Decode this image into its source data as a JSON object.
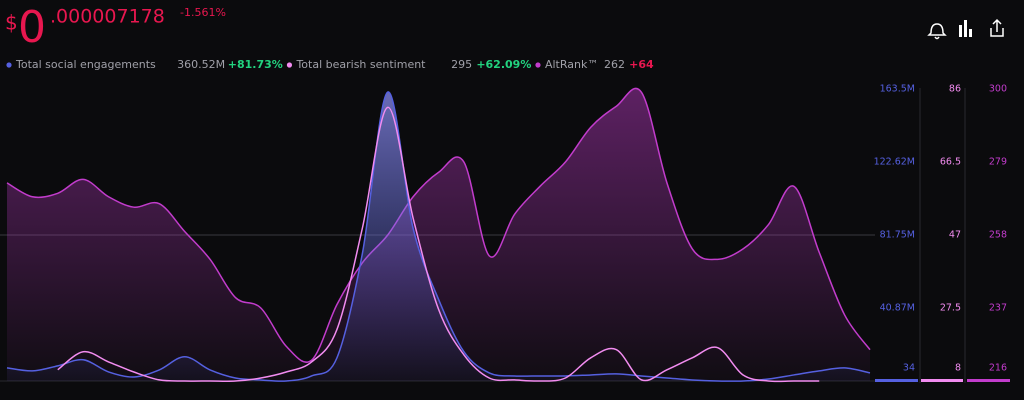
{
  "header": {
    "currency": "$",
    "integer": "0",
    "decimals": ".000007178",
    "change": "-1.561%"
  },
  "chart_data": {
    "type": "line",
    "categories": [
      null,
      null,
      null,
      null,
      null,
      null,
      null,
      null,
      null,
      null,
      null,
      null,
      null,
      null,
      null,
      null,
      null,
      null,
      null,
      null,
      null,
      null,
      null,
      null,
      null,
      null,
      null,
      null,
      null,
      null,
      null,
      null,
      null,
      null,
      null
    ],
    "series": [
      {
        "name": "Total social engagements",
        "current": "360.52M",
        "change": "+81.73%",
        "change_color": "#22d37f",
        "color": "#5560e0",
        "axis": "y",
        "area": true,
        "values": [
          7350000,
          5660000,
          8490000,
          11880000,
          5090000,
          2260000,
          6220000,
          13580000,
          6220000,
          1700000,
          570000,
          34,
          2830000,
          13010000,
          71280000,
          161800000,
          85420000,
          45820000,
          16410000,
          4530000,
          2830000,
          2830000,
          2830000,
          3390000,
          3960000,
          2830000,
          1700000,
          570000,
          34,
          34,
          1130000,
          3390000,
          5660000,
          7350000,
          4530000
        ]
      },
      {
        "name": "Total bearish sentiment",
        "current": "295",
        "change": "+62.09%",
        "change_color": "#22d37f",
        "color": "#f28cf0",
        "axis": "y2",
        "area": false,
        "values": [
          null,
          null,
          11,
          15.8,
          13.1,
          10.4,
          8.3,
          8,
          8,
          8,
          8.8,
          10.4,
          13.1,
          21.8,
          48.8,
          81.1,
          51.5,
          27.2,
          15,
          8.8,
          8.3,
          8,
          8.8,
          14.2,
          16.4,
          8.3,
          11,
          14.2,
          16.9,
          9.6,
          8,
          8,
          8,
          null,
          null
        ]
      },
      {
        "name": "AltRank™",
        "current": "262",
        "change": "+64",
        "change_color": "#e8174f",
        "color": "#c23ccc",
        "axis": "y3",
        "area": true,
        "values": [
          273,
          269,
          270,
          274,
          269,
          266,
          267,
          259,
          251,
          240,
          237,
          226,
          222,
          238,
          250,
          258,
          269,
          276,
          279,
          252,
          264,
          272,
          279,
          289,
          295,
          299,
          273,
          254,
          251,
          254,
          261,
          272,
          253,
          235,
          225
        ]
      }
    ],
    "ylim": [
      34,
      163500000
    ],
    "yticks": [
      34,
      {
        "value": 40870000,
        "label": "40.87M"
      },
      {
        "value": 81750000,
        "label": "81.75M"
      },
      {
        "value": 122620000,
        "label": "122.62M"
      },
      {
        "value": 163500000,
        "label": "163.5M"
      }
    ],
    "y2lim": [
      8,
      86
    ],
    "y2ticks": [
      8,
      27.5,
      47,
      66.5,
      86
    ],
    "y3lim": [
      216,
      300
    ],
    "y3ticks": [
      216,
      237,
      258,
      279,
      300
    ],
    "grid": true
  }
}
